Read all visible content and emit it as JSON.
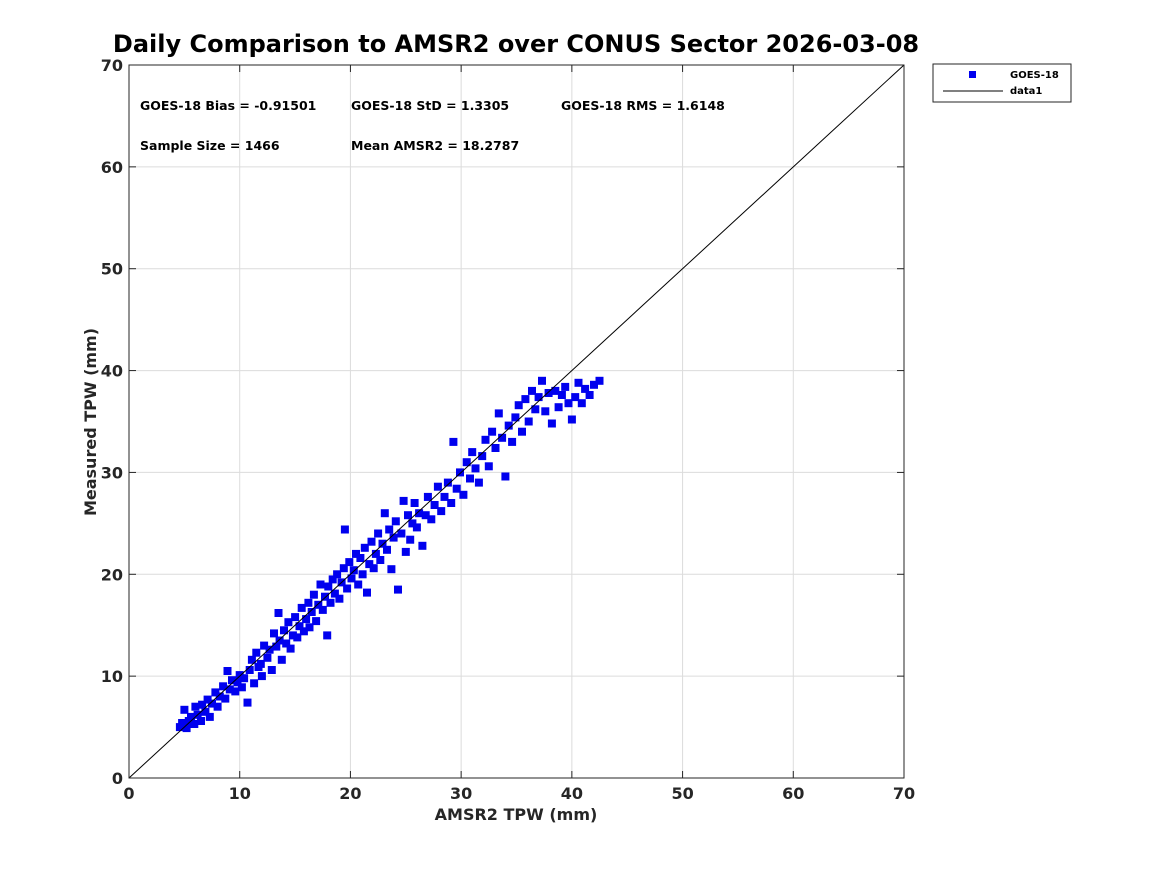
{
  "chart_data": {
    "type": "scatter",
    "title": "Daily Comparison to AMSR2 over CONUS Sector 2026-03-08",
    "xlabel": "AMSR2 TPW (mm)",
    "ylabel": "Measured TPW (mm)",
    "xlim": [
      0,
      70
    ],
    "ylim": [
      0,
      70
    ],
    "xticks": [
      "0",
      "10",
      "20",
      "30",
      "40",
      "50",
      "60",
      "70"
    ],
    "yticks": [
      "0",
      "10",
      "20",
      "30",
      "40",
      "50",
      "60",
      "70"
    ],
    "grid": true,
    "legend_position": "outside-top-right",
    "annotations": {
      "bias": "GOES-18 Bias = -0.91501",
      "std": "GOES-18 StD = 1.3305",
      "rms": "GOES-18 RMS = 1.6148",
      "sample_size": "Sample Size = 1466",
      "mean": "Mean AMSR2 = 18.2787"
    },
    "series": [
      {
        "name": "GOES-18",
        "kind": "scatter",
        "marker": "square",
        "color": "#0000ee",
        "points": [
          [
            4.6,
            5.0
          ],
          [
            4.8,
            5.4
          ],
          [
            5.0,
            6.7
          ],
          [
            5.2,
            4.9
          ],
          [
            5.4,
            5.6
          ],
          [
            5.6,
            6.0
          ],
          [
            5.9,
            5.3
          ],
          [
            6.0,
            7.0
          ],
          [
            6.2,
            6.2
          ],
          [
            6.5,
            5.6
          ],
          [
            6.6,
            7.2
          ],
          [
            6.9,
            6.5
          ],
          [
            7.1,
            7.7
          ],
          [
            7.3,
            6.0
          ],
          [
            7.5,
            7.3
          ],
          [
            7.8,
            8.4
          ],
          [
            8.0,
            7.0
          ],
          [
            8.2,
            8.0
          ],
          [
            8.5,
            9.0
          ],
          [
            8.7,
            7.8
          ],
          [
            8.9,
            10.5
          ],
          [
            9.1,
            8.7
          ],
          [
            9.3,
            9.6
          ],
          [
            9.6,
            8.5
          ],
          [
            9.8,
            9.4
          ],
          [
            10.0,
            10.1
          ],
          [
            10.2,
            8.9
          ],
          [
            10.4,
            9.8
          ],
          [
            10.7,
            7.4
          ],
          [
            10.9,
            10.6
          ],
          [
            11.1,
            11.6
          ],
          [
            11.3,
            9.3
          ],
          [
            11.5,
            12.3
          ],
          [
            11.7,
            10.9
          ],
          [
            11.9,
            11.2
          ],
          [
            12.0,
            10.0
          ],
          [
            12.2,
            13.0
          ],
          [
            12.5,
            11.8
          ],
          [
            12.7,
            12.6
          ],
          [
            12.9,
            10.6
          ],
          [
            13.1,
            14.2
          ],
          [
            13.3,
            12.9
          ],
          [
            13.5,
            16.2
          ],
          [
            13.6,
            13.5
          ],
          [
            13.8,
            11.6
          ],
          [
            14.0,
            14.5
          ],
          [
            14.2,
            13.2
          ],
          [
            14.4,
            15.3
          ],
          [
            14.6,
            12.7
          ],
          [
            14.8,
            14.0
          ],
          [
            15.0,
            15.8
          ],
          [
            15.2,
            13.8
          ],
          [
            15.4,
            14.9
          ],
          [
            15.6,
            16.7
          ],
          [
            15.8,
            14.4
          ],
          [
            16.0,
            15.6
          ],
          [
            16.2,
            17.2
          ],
          [
            16.3,
            14.8
          ],
          [
            16.5,
            16.3
          ],
          [
            16.7,
            18.0
          ],
          [
            16.9,
            15.4
          ],
          [
            17.1,
            17.0
          ],
          [
            17.3,
            19.0
          ],
          [
            17.5,
            16.5
          ],
          [
            17.7,
            17.8
          ],
          [
            17.9,
            14.0
          ],
          [
            18.0,
            18.8
          ],
          [
            18.2,
            17.2
          ],
          [
            18.4,
            19.5
          ],
          [
            18.6,
            18.1
          ],
          [
            18.8,
            20.0
          ],
          [
            19.0,
            17.6
          ],
          [
            19.2,
            19.2
          ],
          [
            19.4,
            20.6
          ],
          [
            19.5,
            24.4
          ],
          [
            19.7,
            18.6
          ],
          [
            19.9,
            21.2
          ],
          [
            20.1,
            19.6
          ],
          [
            20.3,
            20.4
          ],
          [
            20.5,
            22.0
          ],
          [
            20.7,
            19.0
          ],
          [
            20.9,
            21.6
          ],
          [
            21.1,
            20.0
          ],
          [
            21.3,
            22.6
          ],
          [
            21.5,
            18.2
          ],
          [
            21.7,
            21.0
          ],
          [
            21.9,
            23.2
          ],
          [
            22.1,
            20.6
          ],
          [
            22.3,
            22.0
          ],
          [
            22.5,
            24.0
          ],
          [
            22.7,
            21.4
          ],
          [
            22.9,
            23.0
          ],
          [
            23.1,
            26.0
          ],
          [
            23.3,
            22.4
          ],
          [
            23.5,
            24.4
          ],
          [
            23.7,
            20.5
          ],
          [
            23.9,
            23.6
          ],
          [
            24.1,
            25.2
          ],
          [
            24.3,
            18.5
          ],
          [
            24.6,
            24.0
          ],
          [
            24.8,
            27.2
          ],
          [
            25.0,
            22.2
          ],
          [
            25.2,
            25.8
          ],
          [
            25.4,
            23.4
          ],
          [
            25.6,
            25.0
          ],
          [
            25.8,
            27.0
          ],
          [
            26.0,
            24.6
          ],
          [
            26.2,
            26.0
          ],
          [
            26.5,
            22.8
          ],
          [
            26.8,
            25.8
          ],
          [
            27.0,
            27.6
          ],
          [
            27.3,
            25.4
          ],
          [
            27.6,
            26.8
          ],
          [
            27.9,
            28.6
          ],
          [
            28.2,
            26.2
          ],
          [
            28.5,
            27.6
          ],
          [
            28.8,
            29.0
          ],
          [
            29.1,
            27.0
          ],
          [
            29.3,
            33.0
          ],
          [
            29.6,
            28.4
          ],
          [
            29.9,
            30.0
          ],
          [
            30.2,
            27.8
          ],
          [
            30.5,
            31.0
          ],
          [
            30.8,
            29.4
          ],
          [
            31.0,
            32.0
          ],
          [
            31.3,
            30.4
          ],
          [
            31.6,
            29.0
          ],
          [
            31.9,
            31.6
          ],
          [
            32.2,
            33.2
          ],
          [
            32.5,
            30.6
          ],
          [
            32.8,
            34.0
          ],
          [
            33.1,
            32.4
          ],
          [
            33.4,
            35.8
          ],
          [
            33.7,
            33.4
          ],
          [
            34.0,
            29.6
          ],
          [
            34.3,
            34.6
          ],
          [
            34.6,
            33.0
          ],
          [
            34.9,
            35.4
          ],
          [
            35.2,
            36.6
          ],
          [
            35.5,
            34.0
          ],
          [
            35.8,
            37.2
          ],
          [
            36.1,
            35.0
          ],
          [
            36.4,
            38.0
          ],
          [
            36.7,
            36.2
          ],
          [
            37.0,
            37.4
          ],
          [
            37.3,
            39.0
          ],
          [
            37.6,
            36.0
          ],
          [
            37.9,
            37.8
          ],
          [
            38.2,
            34.8
          ],
          [
            38.5,
            38.0
          ],
          [
            38.8,
            36.4
          ],
          [
            39.1,
            37.6
          ],
          [
            39.4,
            38.4
          ],
          [
            39.7,
            36.8
          ],
          [
            40.0,
            35.2
          ],
          [
            40.3,
            37.4
          ],
          [
            40.6,
            38.8
          ],
          [
            40.9,
            36.8
          ],
          [
            41.2,
            38.2
          ],
          [
            41.6,
            37.6
          ],
          [
            42.0,
            38.6
          ],
          [
            42.5,
            39.0
          ]
        ]
      },
      {
        "name": "data1",
        "kind": "line",
        "color": "#000000",
        "points": [
          [
            0,
            0
          ],
          [
            70,
            70
          ]
        ]
      }
    ]
  }
}
